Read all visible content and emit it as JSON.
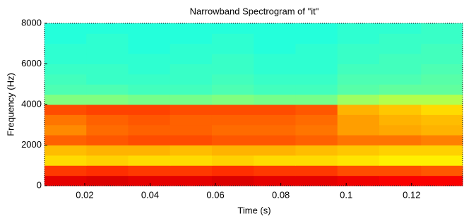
{
  "chart_data": {
    "type": "heatmap",
    "title": "Narrowband Spectrogram of \"it\"",
    "xlabel": "Time (s)",
    "ylabel": "Frequency (Hz)",
    "xlim": [
      0.0077,
      0.1356
    ],
    "ylim": [
      0,
      8000
    ],
    "xticks": [
      0.02,
      0.04,
      0.06,
      0.08,
      0.1,
      0.12
    ],
    "yticks": [
      0,
      2000,
      4000,
      6000,
      8000
    ],
    "colormap": "jet",
    "zlim": [
      0,
      1
    ],
    "xbins": [
      0.0077,
      0.0205,
      0.0333,
      0.0461,
      0.0589,
      0.0717,
      0.0845,
      0.0973,
      0.1101,
      0.1229,
      0.1356
    ],
    "ybins": [
      0,
      500,
      1000,
      1500,
      2000,
      2500,
      3000,
      3500,
      4000,
      4500,
      5000,
      5500,
      6000,
      6500,
      7000,
      7500,
      8000
    ],
    "z": [
      [
        0.9,
        0.91,
        0.9,
        0.9,
        0.91,
        0.9,
        0.9,
        0.89,
        0.88,
        0.88
      ],
      [
        0.82,
        0.83,
        0.82,
        0.82,
        0.83,
        0.82,
        0.82,
        0.8,
        0.8,
        0.79
      ],
      [
        0.66,
        0.67,
        0.66,
        0.66,
        0.67,
        0.66,
        0.66,
        0.65,
        0.64,
        0.64
      ],
      [
        0.69,
        0.7,
        0.7,
        0.69,
        0.7,
        0.7,
        0.69,
        0.68,
        0.67,
        0.67
      ],
      [
        0.78,
        0.79,
        0.8,
        0.8,
        0.79,
        0.79,
        0.78,
        0.76,
        0.76,
        0.75
      ],
      [
        0.74,
        0.77,
        0.78,
        0.78,
        0.77,
        0.77,
        0.76,
        0.72,
        0.71,
        0.7
      ],
      [
        0.76,
        0.78,
        0.79,
        0.78,
        0.78,
        0.78,
        0.77,
        0.72,
        0.7,
        0.69
      ],
      [
        0.8,
        0.81,
        0.81,
        0.8,
        0.8,
        0.8,
        0.79,
        0.7,
        0.68,
        0.66
      ],
      [
        0.5,
        0.5,
        0.49,
        0.49,
        0.5,
        0.49,
        0.49,
        0.53,
        0.55,
        0.55
      ],
      [
        0.45,
        0.45,
        0.44,
        0.44,
        0.45,
        0.44,
        0.44,
        0.46,
        0.47,
        0.47
      ],
      [
        0.44,
        0.43,
        0.43,
        0.43,
        0.44,
        0.43,
        0.43,
        0.45,
        0.45,
        0.46
      ],
      [
        0.43,
        0.43,
        0.42,
        0.43,
        0.43,
        0.42,
        0.42,
        0.44,
        0.44,
        0.45
      ],
      [
        0.42,
        0.42,
        0.42,
        0.42,
        0.43,
        0.42,
        0.42,
        0.43,
        0.44,
        0.44
      ],
      [
        0.42,
        0.42,
        0.41,
        0.42,
        0.42,
        0.41,
        0.42,
        0.43,
        0.43,
        0.44
      ],
      [
        0.41,
        0.42,
        0.41,
        0.41,
        0.42,
        0.41,
        0.41,
        0.42,
        0.43,
        0.43
      ],
      [
        0.41,
        0.41,
        0.41,
        0.41,
        0.41,
        0.41,
        0.41,
        0.42,
        0.42,
        0.43
      ]
    ]
  }
}
